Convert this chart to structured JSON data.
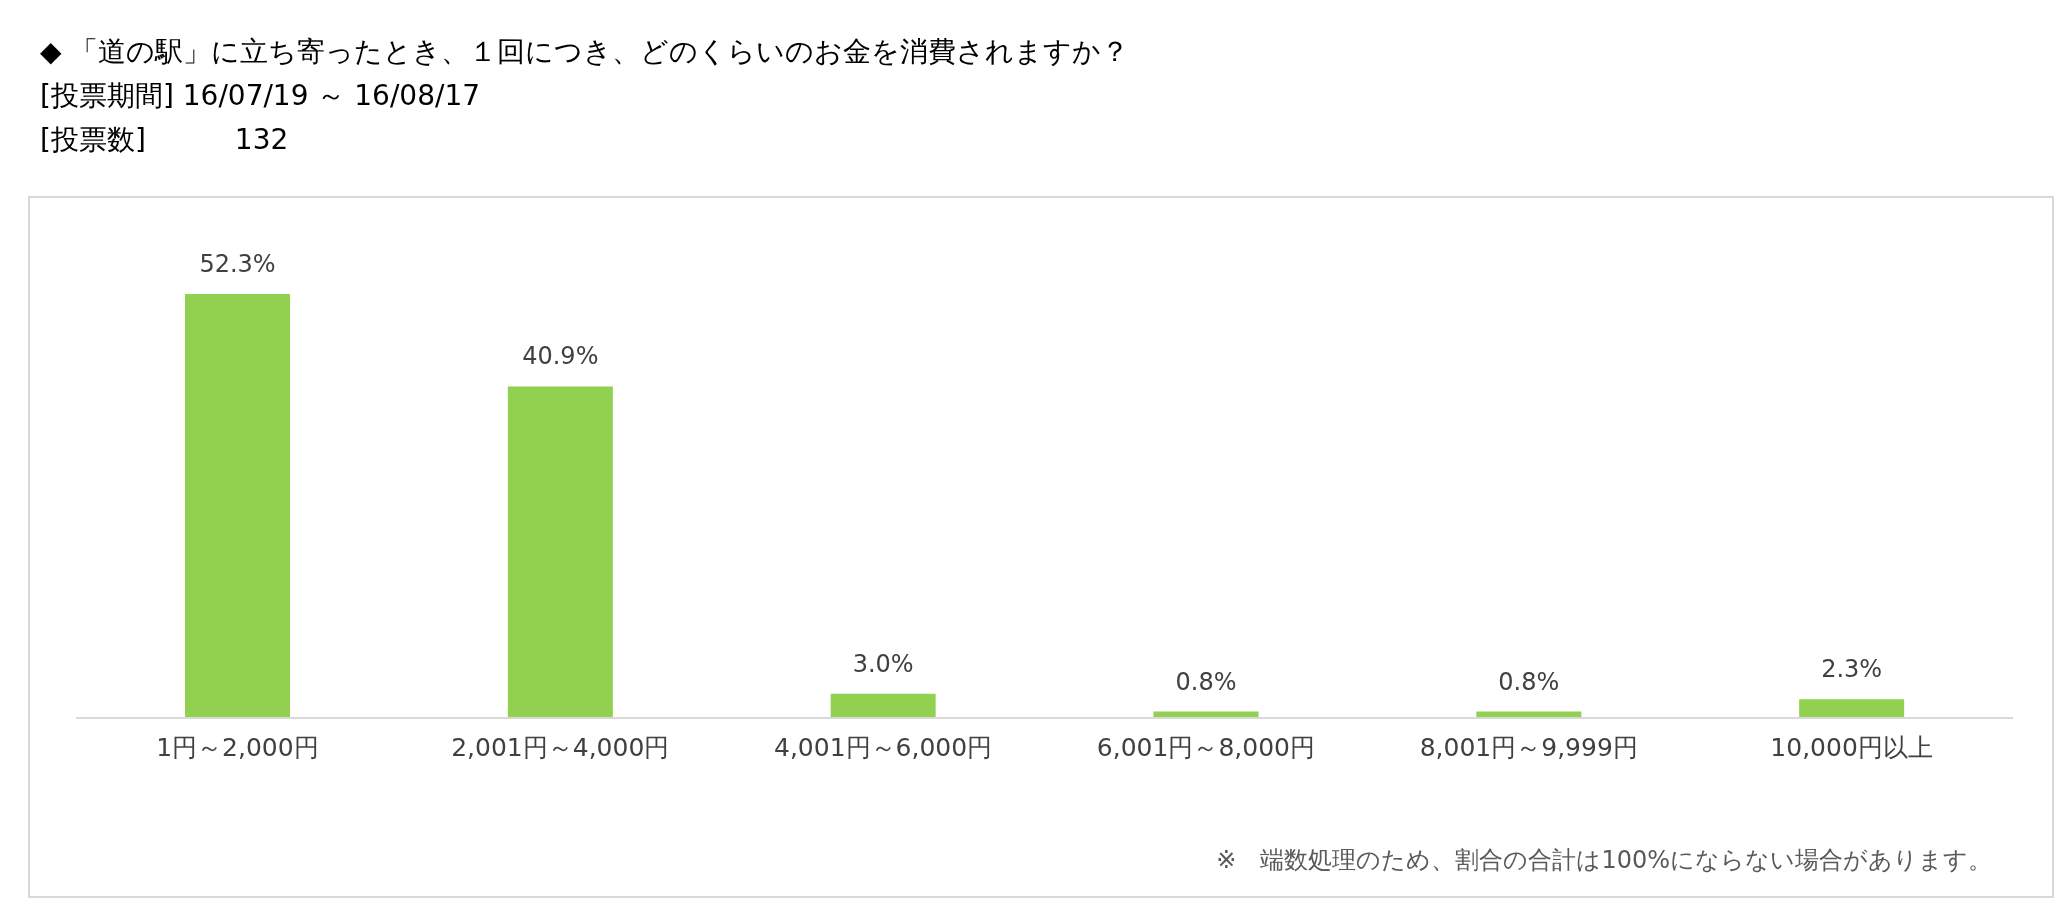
{
  "chart_data": {
    "type": "bar",
    "title": "◆ 「道の駅」に立ち寄ったとき、１回につき、どのくらいのお金を消費されますか？",
    "subtitle": "[投票期間] 16/07/19 ～ 16/08/17\n[投票数]          132",
    "categories": [
      "1円～2,000円",
      "2,001円～4,000円",
      "4,001円～6,000円",
      "6,001円～8,000円",
      "8,001円～9,999円",
      "10,000円以上"
    ],
    "values": [
      52.3,
      40.9,
      3.0,
      0.8,
      0.8,
      2.3
    ],
    "value_labels": [
      "52.3%",
      "40.9%",
      "3.0%",
      "0.8%",
      "0.8%",
      "2.3%"
    ],
    "color": "#92d050",
    "annotations": [
      "※　端数処理のため、割合の合計は100%にならない場合があります。"
    ]
  }
}
